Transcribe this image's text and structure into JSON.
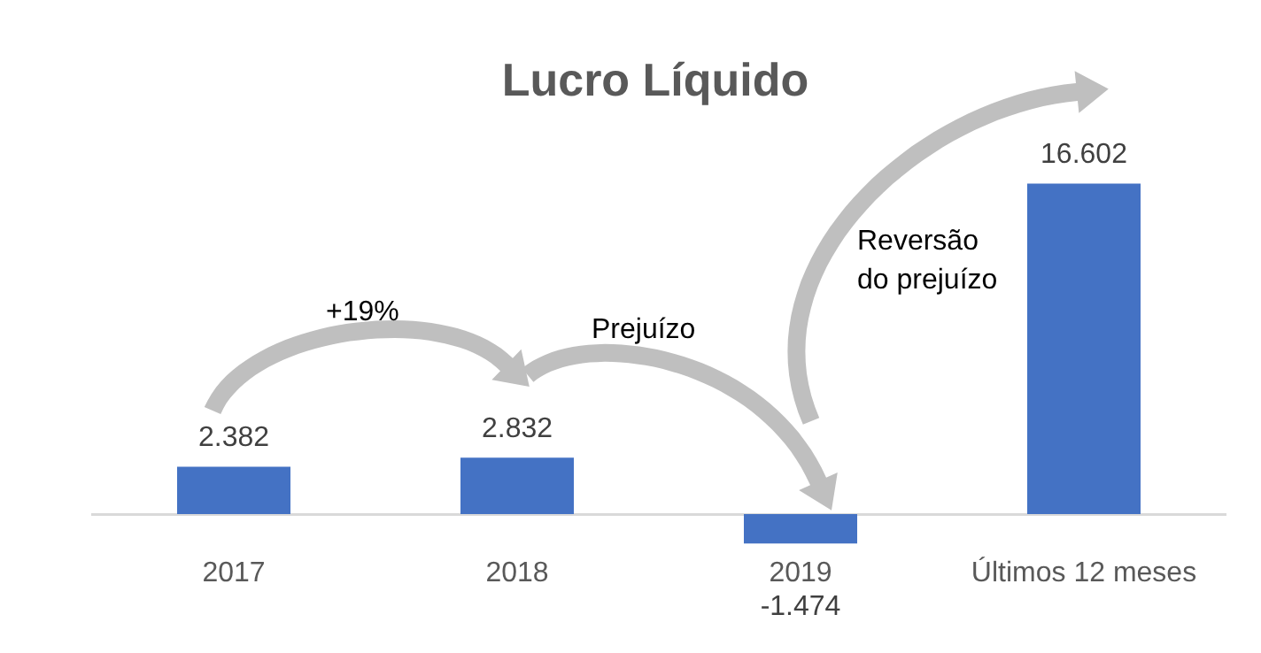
{
  "chart_data": {
    "type": "bar",
    "title": "Lucro Líquido",
    "categories": [
      "2017",
      "2018",
      "2019",
      "Últimos 12 meses"
    ],
    "values": [
      2382,
      2832,
      -1474,
      16602
    ],
    "value_labels": [
      "2.382",
      "2.832",
      "-1.474",
      "16.602"
    ],
    "color": "#4472c4",
    "annotations": [
      "+19%",
      "Prejuízo",
      "Reversão do prejuízo"
    ],
    "grid": false,
    "legend": false
  }
}
